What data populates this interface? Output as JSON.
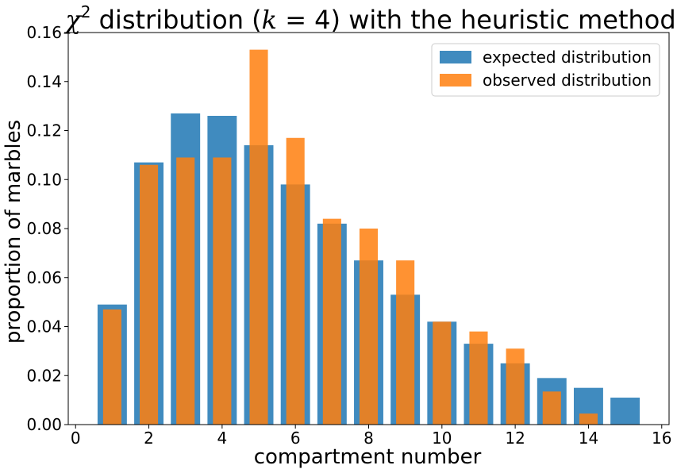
{
  "chart_data": {
    "type": "bar",
    "title_parts": {
      "chi": "χ",
      "sup": "2",
      "rest_1": " distribution (",
      "k": "k",
      "eq": " = 4) with the heuristic method"
    },
    "xlabel": "compartment number",
    "ylabel": "proportion of marbles",
    "xlim": [
      -0.2,
      16.2
    ],
    "ylim": [
      0,
      0.16
    ],
    "xticks": [
      0,
      2,
      4,
      6,
      8,
      10,
      12,
      14,
      16
    ],
    "yticks": [
      0.0,
      0.02,
      0.04,
      0.06,
      0.08,
      0.1,
      0.12,
      0.14,
      0.16
    ],
    "ytick_labels": [
      "0.00",
      "0.02",
      "0.04",
      "0.06",
      "0.08",
      "0.10",
      "0.12",
      "0.14",
      "0.16"
    ],
    "categories": [
      1,
      2,
      3,
      4,
      5,
      6,
      7,
      8,
      9,
      10,
      11,
      12,
      13,
      14,
      15
    ],
    "grid": false,
    "legend_position": "top-right",
    "series": [
      {
        "name": "expected distribution",
        "color": "#1f77b4",
        "opacity": 0.85,
        "bar_width": 0.8,
        "values": [
          0.049,
          0.107,
          0.127,
          0.126,
          0.114,
          0.098,
          0.082,
          0.067,
          0.053,
          0.042,
          0.033,
          0.025,
          0.019,
          0.015,
          0.011
        ]
      },
      {
        "name": "observed distribution",
        "color": "#ff7f0e",
        "opacity": 0.85,
        "bar_width": 0.5,
        "values": [
          0.047,
          0.106,
          0.109,
          0.109,
          0.153,
          0.117,
          0.084,
          0.08,
          0.067,
          0.042,
          0.038,
          0.031,
          0.0135,
          0.0045,
          0.0
        ]
      }
    ]
  }
}
